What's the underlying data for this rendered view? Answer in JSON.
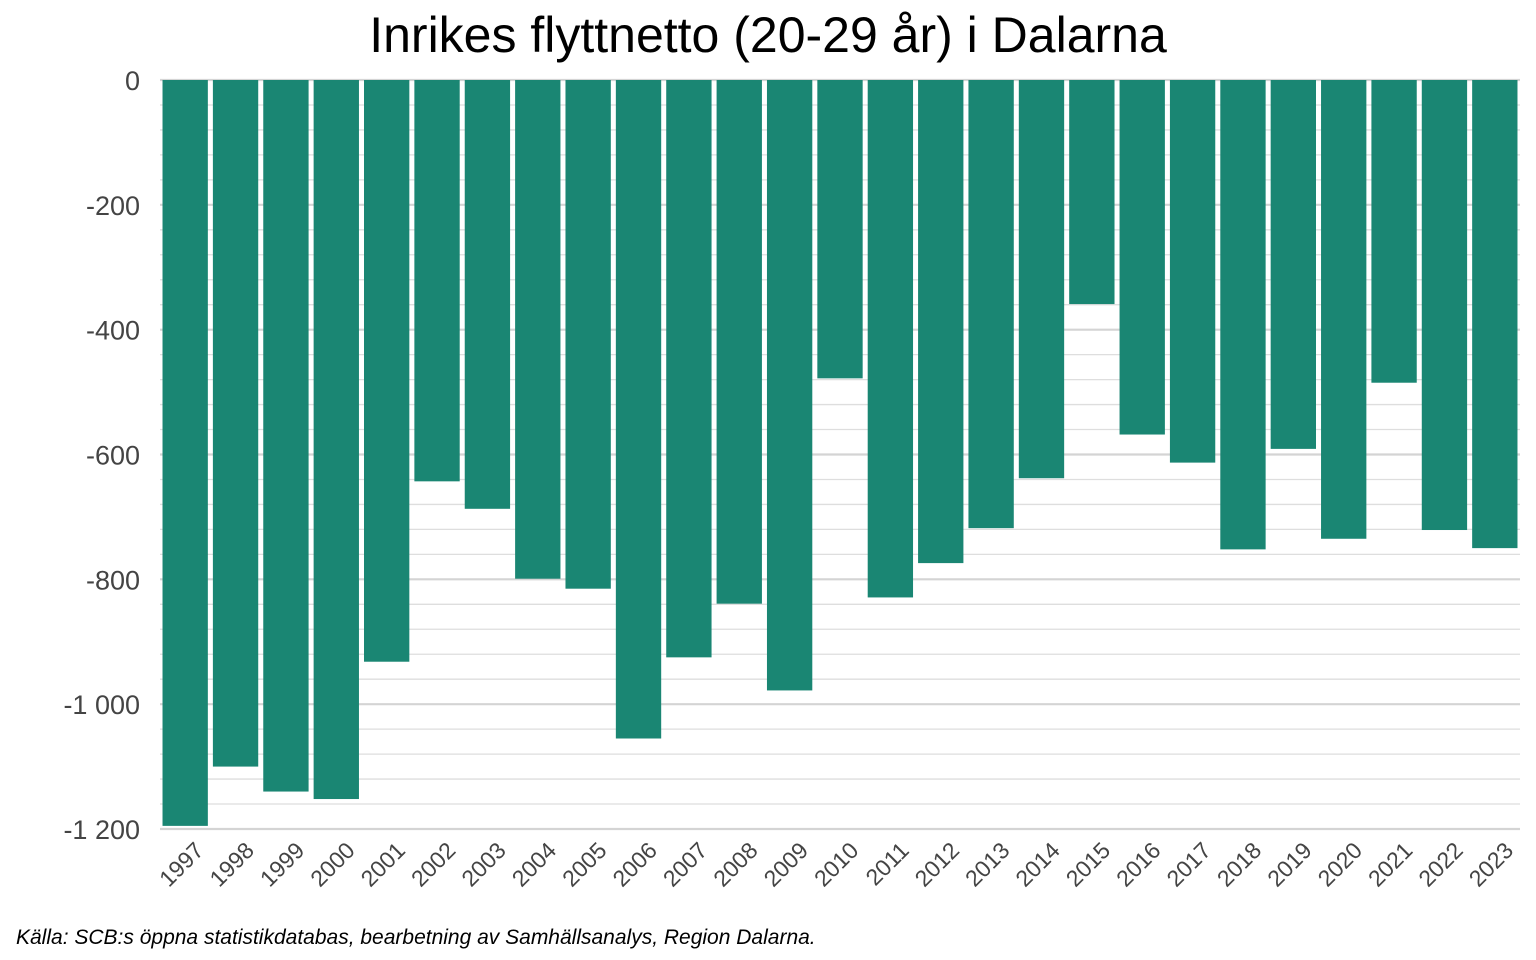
{
  "chart_data": {
    "type": "bar",
    "title": "Inrikes flyttnetto (20-29 år) i Dalarna",
    "xlabel": "",
    "ylabel": "",
    "categories": [
      "1997",
      "1998",
      "1999",
      "2000",
      "2001",
      "2002",
      "2003",
      "2004",
      "2005",
      "2006",
      "2007",
      "2008",
      "2009",
      "2010",
      "2011",
      "2012",
      "2013",
      "2014",
      "2015",
      "2016",
      "2017",
      "2018",
      "2019",
      "2020",
      "2021",
      "2022",
      "2023"
    ],
    "values": [
      -1195,
      -1100,
      -1140,
      -1152,
      -932,
      -643,
      -687,
      -799,
      -815,
      -1055,
      -925,
      -839,
      -978,
      -478,
      -829,
      -774,
      -718,
      -638,
      -359,
      -568,
      -613,
      -752,
      -591,
      -735,
      -485,
      -721,
      -750
    ],
    "ylim": [
      -1200,
      0
    ],
    "yticks": [
      0,
      -200,
      -400,
      -600,
      -800,
      -1000,
      -1200
    ],
    "ytick_labels": [
      "0",
      "-200",
      "-400",
      "-600",
      "-800",
      "-1 000",
      "-1 200"
    ],
    "grid": true,
    "bar_color": "#1a8673",
    "source": "Källa: SCB:s öppna statistikdatabas, bearbetning av Samhällsanalys, Region Dalarna."
  }
}
